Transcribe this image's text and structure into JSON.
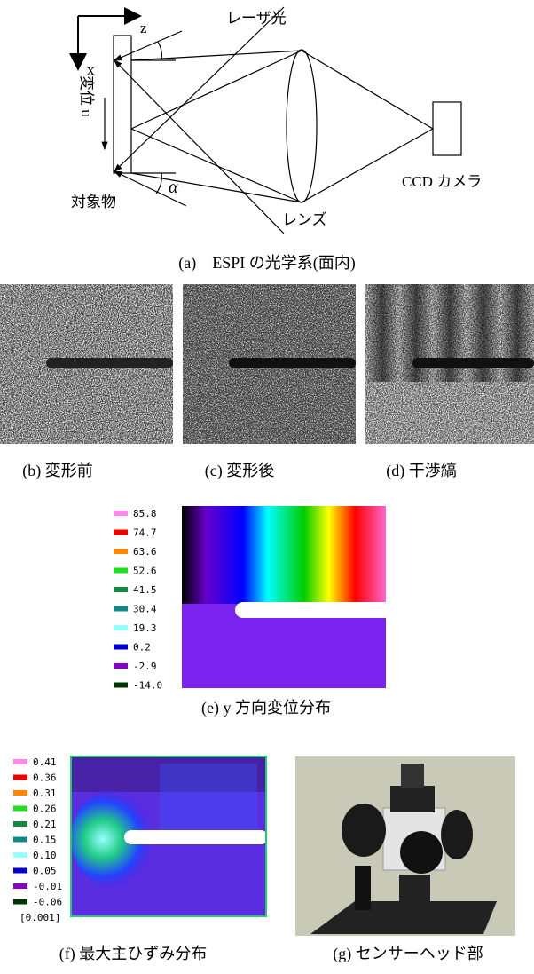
{
  "diagram": {
    "axis_z": "z",
    "axis_x": "x",
    "displacement": "変位 u",
    "laser": "レーザ光",
    "camera": "CCD カメラ",
    "object": "対象物",
    "angle": "α",
    "lens": "レンズ"
  },
  "captions": {
    "a": "(a)　ESPI の光学系(面内)",
    "b": "(b) 変形前",
    "c": "(c) 変形後",
    "d": "(d) 干渉縞",
    "e": "(e) y 方向変位分布",
    "f": "(f) 最大主ひずみ分布",
    "g": "(g) センサーヘッド部"
  },
  "legend_e": [
    {
      "label": "85.8",
      "color": "#ff88ee"
    },
    {
      "label": "74.7",
      "color": "#ee0000"
    },
    {
      "label": "63.6",
      "color": "#ff8800"
    },
    {
      "label": "52.6",
      "color": "#22dd22"
    },
    {
      "label": "41.5",
      "color": "#118844"
    },
    {
      "label": "30.4",
      "color": "#118888"
    },
    {
      "label": "19.3",
      "color": "#99ffff"
    },
    {
      "label": "0.2",
      "color": "#0000cc"
    },
    {
      "label": "-2.9",
      "color": "#8800cc"
    },
    {
      "label": "-14.0",
      "color": "#003300"
    }
  ],
  "legend_f": [
    {
      "label": "0.41",
      "color": "#ff88ee"
    },
    {
      "label": "0.36",
      "color": "#ee0000"
    },
    {
      "label": "0.31",
      "color": "#ff8800"
    },
    {
      "label": "0.26",
      "color": "#22dd22"
    },
    {
      "label": "0.21",
      "color": "#118844"
    },
    {
      "label": "0.15",
      "color": "#118888"
    },
    {
      "label": "0.10",
      "color": "#99ffff"
    },
    {
      "label": "0.05",
      "color": "#0000cc"
    },
    {
      "label": "-0.01",
      "color": "#8800cc"
    },
    {
      "label": "-0.06",
      "color": "#003300"
    }
  ],
  "legend_f_unit": "[0.001]"
}
